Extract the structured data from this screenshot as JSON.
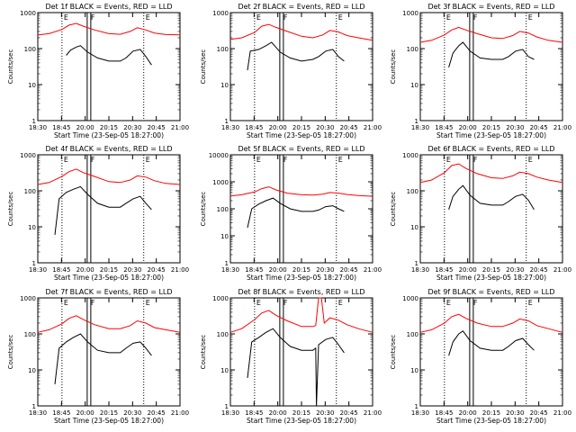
{
  "figure": {
    "xlabel": "Start Time (23-Sep-05 18:27:00)",
    "ylabel": "Counts/sec",
    "x_tick_labels": [
      "18:30",
      "18:45",
      "20:00",
      "20:15",
      "20:30",
      "20:45",
      "21:00"
    ],
    "y_tick_labels": [
      "1",
      "10",
      "100",
      "1000"
    ],
    "flag_labels": [
      "E",
      "F",
      "E"
    ],
    "colors": {
      "events": "#000000",
      "lld": "#ff0000",
      "axes": "#000000"
    }
  },
  "chart_data": [
    {
      "type": "line",
      "title": "Det 1f BLACK = Events, RED = LLD",
      "ylabel": "Counts/sec",
      "xlabel": "Start Time (23-Sep-05 18:27:00)",
      "yscale": "log",
      "ylim": [
        1,
        1000
      ],
      "xlim": [
        0,
        1
      ],
      "categories": [
        "18:30",
        "18:45",
        "20:00",
        "20:15",
        "20:30",
        "20:45",
        "21:00"
      ],
      "markers": [
        0.17,
        0.36,
        0.745
      ],
      "series": [
        {
          "name": "LLD",
          "color": "#ff0000",
          "x": [
            0.0,
            0.08,
            0.17,
            0.22,
            0.27,
            0.32,
            0.4,
            0.5,
            0.58,
            0.65,
            0.7,
            0.76,
            0.82,
            0.9,
            1.0
          ],
          "values": [
            240,
            260,
            340,
            450,
            500,
            420,
            330,
            260,
            250,
            300,
            380,
            330,
            270,
            245,
            240
          ]
        },
        {
          "name": "Events",
          "color": "#000000",
          "x": [
            0.2,
            0.23,
            0.27,
            0.3,
            0.35,
            0.42,
            0.5,
            0.58,
            0.62,
            0.67,
            0.72,
            0.76,
            0.8
          ],
          "values": [
            65,
            90,
            110,
            120,
            80,
            55,
            45,
            45,
            55,
            85,
            95,
            60,
            35
          ]
        }
      ]
    },
    {
      "type": "line",
      "title": "Det 2f BLACK = Events, RED = LLD",
      "ylabel": "Counts/sec",
      "xlabel": "Start Time (23-Sep-05 18:27:00)",
      "yscale": "log",
      "ylim": [
        1,
        1000
      ],
      "xlim": [
        0,
        1
      ],
      "categories": [
        "18:30",
        "18:45",
        "20:00",
        "20:15",
        "20:30",
        "20:45",
        "21:00"
      ],
      "markers": [
        0.17,
        0.36,
        0.745
      ],
      "series": [
        {
          "name": "LLD",
          "color": "#ff0000",
          "x": [
            0.0,
            0.08,
            0.17,
            0.22,
            0.27,
            0.32,
            0.4,
            0.5,
            0.58,
            0.65,
            0.7,
            0.76,
            0.82,
            0.9,
            1.0
          ],
          "values": [
            180,
            200,
            280,
            420,
            470,
            390,
            300,
            220,
            200,
            240,
            320,
            290,
            230,
            200,
            170
          ]
        },
        {
          "name": "Events",
          "color": "#000000",
          "x": [
            0.12,
            0.14,
            0.2,
            0.25,
            0.29,
            0.35,
            0.42,
            0.5,
            0.58,
            0.62,
            0.67,
            0.72,
            0.76,
            0.8
          ],
          "values": [
            25,
            85,
            95,
            120,
            150,
            80,
            55,
            45,
            50,
            60,
            85,
            95,
            60,
            45
          ]
        }
      ]
    },
    {
      "type": "line",
      "title": "Det 3f BLACK = Events, RED = LLD",
      "ylabel": "Counts/sec",
      "xlabel": "Start Time (23-Sep-05 18:27:00)",
      "yscale": "log",
      "ylim": [
        1,
        1000
      ],
      "xlim": [
        0,
        1
      ],
      "categories": [
        "18:30",
        "18:45",
        "20:00",
        "20:15",
        "20:30",
        "20:45",
        "21:00"
      ],
      "markers": [
        0.17,
        0.36,
        0.745
      ],
      "series": [
        {
          "name": "LLD",
          "color": "#ff0000",
          "x": [
            0.0,
            0.08,
            0.17,
            0.22,
            0.27,
            0.32,
            0.4,
            0.5,
            0.58,
            0.65,
            0.7,
            0.76,
            0.82,
            0.9,
            1.0
          ],
          "values": [
            150,
            170,
            240,
            330,
            390,
            330,
            260,
            200,
            190,
            230,
            300,
            270,
            210,
            170,
            150
          ]
        },
        {
          "name": "Events",
          "color": "#000000",
          "x": [
            0.2,
            0.23,
            0.27,
            0.3,
            0.35,
            0.42,
            0.5,
            0.58,
            0.62,
            0.67,
            0.72,
            0.76,
            0.8
          ],
          "values": [
            30,
            75,
            120,
            150,
            85,
            55,
            50,
            50,
            60,
            85,
            95,
            60,
            50
          ]
        }
      ]
    },
    {
      "type": "line",
      "title": "Det 4f BLACK = Events, RED = LLD",
      "ylabel": "Counts/sec",
      "xlabel": "Start Time (23-Sep-05 18:27:00)",
      "yscale": "log",
      "ylim": [
        1,
        1000
      ],
      "xlim": [
        0,
        1
      ],
      "categories": [
        "18:30",
        "18:45",
        "20:00",
        "20:15",
        "20:30",
        "20:45",
        "21:00"
      ],
      "markers": [
        0.17,
        0.36,
        0.745
      ],
      "series": [
        {
          "name": "LLD",
          "color": "#ff0000",
          "x": [
            0.0,
            0.08,
            0.17,
            0.22,
            0.27,
            0.32,
            0.4,
            0.5,
            0.58,
            0.65,
            0.7,
            0.76,
            0.82,
            0.9,
            1.0
          ],
          "values": [
            150,
            170,
            250,
            340,
            400,
            320,
            250,
            180,
            170,
            200,
            260,
            240,
            190,
            160,
            150
          ]
        },
        {
          "name": "Events",
          "color": "#000000",
          "x": [
            0.12,
            0.15,
            0.2,
            0.25,
            0.3,
            0.35,
            0.42,
            0.5,
            0.58,
            0.62,
            0.67,
            0.72,
            0.76,
            0.8
          ],
          "values": [
            6,
            60,
            90,
            110,
            130,
            80,
            45,
            35,
            35,
            45,
            60,
            70,
            45,
            30
          ]
        }
      ]
    },
    {
      "type": "line",
      "title": "Det 5f BLACK = Events, RED = LLD",
      "ylabel": "Counts/sec",
      "xlabel": "Start Time (23-Sep-05 18:27:00)",
      "yscale": "log",
      "ylim": [
        1,
        10000
      ],
      "xlim": [
        0,
        1
      ],
      "categories": [
        "18:30",
        "18:45",
        "20:00",
        "20:15",
        "20:30",
        "20:45",
        "21:00"
      ],
      "y_tick_labels": [
        "1",
        "10",
        "100",
        "1000",
        "10000"
      ],
      "markers": [
        0.17,
        0.36,
        0.745
      ],
      "series": [
        {
          "name": "LLD",
          "color": "#ff0000",
          "x": [
            0.0,
            0.08,
            0.17,
            0.22,
            0.27,
            0.32,
            0.4,
            0.5,
            0.58,
            0.65,
            0.7,
            0.76,
            0.82,
            0.9,
            1.0
          ],
          "values": [
            300,
            330,
            420,
            560,
            650,
            500,
            380,
            330,
            320,
            350,
            400,
            380,
            340,
            310,
            290
          ]
        },
        {
          "name": "Events",
          "color": "#000000",
          "x": [
            0.12,
            0.15,
            0.2,
            0.25,
            0.3,
            0.35,
            0.42,
            0.5,
            0.58,
            0.62,
            0.67,
            0.72,
            0.76,
            0.8
          ],
          "values": [
            20,
            100,
            150,
            200,
            250,
            160,
            100,
            80,
            80,
            90,
            120,
            130,
            100,
            80
          ]
        }
      ]
    },
    {
      "type": "line",
      "title": "Det 6f BLACK = Events, RED = LLD",
      "ylabel": "Counts/sec",
      "xlabel": "Start Time (23-Sep-05 18:27:00)",
      "yscale": "log",
      "ylim": [
        1,
        1000
      ],
      "xlim": [
        0,
        1
      ],
      "categories": [
        "18:30",
        "18:45",
        "20:00",
        "20:15",
        "20:30",
        "20:45",
        "21:00"
      ],
      "markers": [
        0.17,
        0.36,
        0.745
      ],
      "series": [
        {
          "name": "LLD",
          "color": "#ff0000",
          "x": [
            0.0,
            0.08,
            0.17,
            0.22,
            0.27,
            0.32,
            0.4,
            0.5,
            0.58,
            0.65,
            0.7,
            0.76,
            0.82,
            0.9,
            1.0
          ],
          "values": [
            170,
            200,
            320,
            500,
            560,
            420,
            300,
            230,
            220,
            260,
            330,
            300,
            240,
            200,
            170
          ]
        },
        {
          "name": "Events",
          "color": "#000000",
          "x": [
            0.2,
            0.23,
            0.27,
            0.3,
            0.35,
            0.42,
            0.5,
            0.58,
            0.62,
            0.67,
            0.72,
            0.76,
            0.8
          ],
          "values": [
            30,
            70,
            110,
            140,
            75,
            45,
            40,
            40,
            50,
            70,
            80,
            55,
            30
          ]
        }
      ]
    },
    {
      "type": "line",
      "title": "Det 7f BLACK = Events, RED = LLD",
      "ylabel": "Counts/sec",
      "xlabel": "Start Time (23-Sep-05 18:27:00)",
      "yscale": "log",
      "ylim": [
        1,
        1000
      ],
      "xlim": [
        0,
        1
      ],
      "categories": [
        "18:30",
        "18:45",
        "20:00",
        "20:15",
        "20:30",
        "20:45",
        "21:00"
      ],
      "markers": [
        0.17,
        0.36,
        0.745
      ],
      "series": [
        {
          "name": "LLD",
          "color": "#ff0000",
          "x": [
            0.0,
            0.08,
            0.17,
            0.22,
            0.27,
            0.32,
            0.4,
            0.5,
            0.58,
            0.65,
            0.7,
            0.76,
            0.82,
            0.9,
            1.0
          ],
          "values": [
            110,
            130,
            190,
            270,
            320,
            250,
            180,
            140,
            140,
            170,
            230,
            200,
            150,
            130,
            110
          ]
        },
        {
          "name": "Events",
          "color": "#000000",
          "x": [
            0.12,
            0.15,
            0.2,
            0.25,
            0.3,
            0.35,
            0.42,
            0.5,
            0.58,
            0.62,
            0.67,
            0.72,
            0.76,
            0.8
          ],
          "values": [
            4,
            40,
            60,
            80,
            100,
            60,
            35,
            30,
            30,
            40,
            55,
            60,
            40,
            25
          ]
        }
      ]
    },
    {
      "type": "line",
      "title": "Det 8f BLACK = Events, RED = LLD",
      "ylabel": "Counts/sec",
      "xlabel": "Start Time (23-Sep-05 18:27:00)",
      "yscale": "log",
      "ylim": [
        1,
        1000
      ],
      "xlim": [
        0,
        1
      ],
      "categories": [
        "18:30",
        "18:45",
        "20:00",
        "20:15",
        "20:30",
        "20:45",
        "21:00"
      ],
      "markers": [
        0.17,
        0.36,
        0.745
      ],
      "series": [
        {
          "name": "LLD",
          "color": "#ff0000",
          "x": [
            0.0,
            0.08,
            0.17,
            0.22,
            0.27,
            0.32,
            0.4,
            0.5,
            0.58,
            0.6,
            0.62,
            0.64,
            0.66,
            0.7,
            0.76,
            0.82,
            0.9,
            1.0
          ],
          "values": [
            110,
            140,
            250,
            380,
            450,
            330,
            230,
            160,
            160,
            170,
            1000,
            1000,
            200,
            280,
            240,
            180,
            140,
            110
          ]
        },
        {
          "name": "Events",
          "color": "#000000",
          "x": [
            0.12,
            0.15,
            0.2,
            0.25,
            0.3,
            0.35,
            0.42,
            0.5,
            0.58,
            0.6,
            0.605,
            0.62,
            0.67,
            0.72,
            0.76,
            0.8
          ],
          "values": [
            6,
            60,
            80,
            110,
            140,
            80,
            45,
            35,
            35,
            40,
            1,
            50,
            70,
            80,
            50,
            30
          ]
        }
      ]
    },
    {
      "type": "line",
      "title": "Det 9f BLACK = Events, RED = LLD",
      "ylabel": "Counts/sec",
      "xlabel": "Start Time (23-Sep-05 18:27:00)",
      "yscale": "log",
      "ylim": [
        1,
        1000
      ],
      "xlim": [
        0,
        1
      ],
      "categories": [
        "18:30",
        "18:45",
        "20:00",
        "20:15",
        "20:30",
        "20:45",
        "21:00"
      ],
      "markers": [
        0.17,
        0.36,
        0.745
      ],
      "series": [
        {
          "name": "LLD",
          "color": "#ff0000",
          "x": [
            0.0,
            0.08,
            0.17,
            0.22,
            0.27,
            0.32,
            0.4,
            0.5,
            0.58,
            0.65,
            0.7,
            0.76,
            0.82,
            0.9,
            1.0
          ],
          "values": [
            110,
            130,
            200,
            300,
            350,
            270,
            200,
            160,
            160,
            200,
            260,
            230,
            170,
            140,
            110
          ]
        },
        {
          "name": "Events",
          "color": "#000000",
          "x": [
            0.2,
            0.23,
            0.27,
            0.3,
            0.35,
            0.42,
            0.5,
            0.58,
            0.62,
            0.67,
            0.72,
            0.76,
            0.8
          ],
          "values": [
            25,
            60,
            100,
            120,
            65,
            40,
            35,
            35,
            45,
            65,
            75,
            50,
            35
          ]
        }
      ]
    }
  ]
}
